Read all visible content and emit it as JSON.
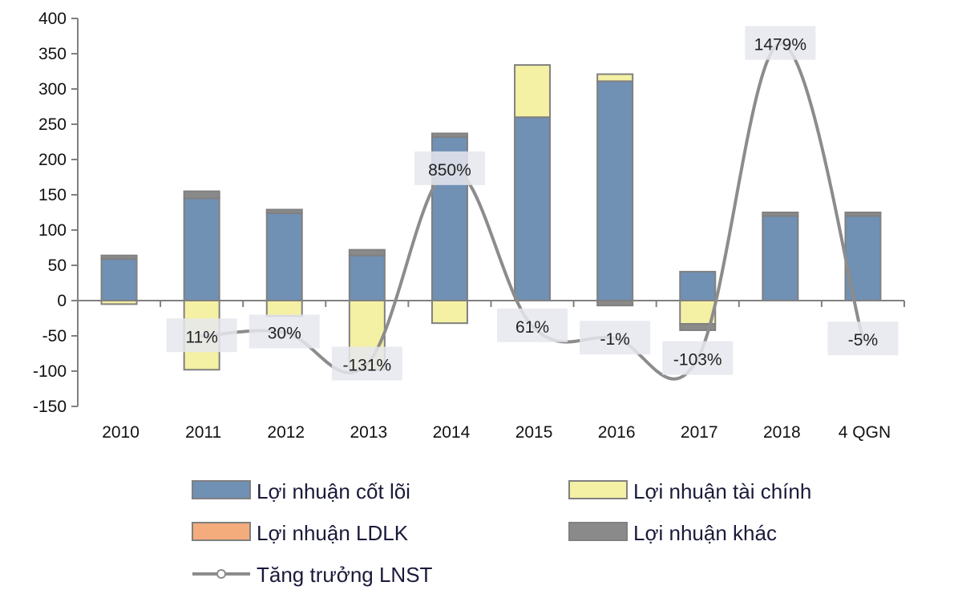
{
  "chart_data": {
    "type": "bar",
    "stacked": true,
    "title": "",
    "xlabel": "",
    "ylabel": "",
    "ylim": [
      -150,
      400
    ],
    "yticks": [
      400,
      350,
      300,
      250,
      200,
      150,
      100,
      50,
      0,
      -50,
      -100,
      -150
    ],
    "grid": false,
    "legend_position": "bottom",
    "categories": [
      "2010",
      "2011",
      "2012",
      "2013",
      "2014",
      "2015",
      "2016",
      "2017",
      "2018",
      "4 QGN"
    ],
    "series": [
      {
        "name": "Lợi nhuận cốt lõi",
        "color": "#7090b4",
        "values": [
          59,
          145,
          124,
          64,
          232,
          260,
          311,
          41,
          120,
          120
        ]
      },
      {
        "name": "Lợi nhuận tài chính",
        "color": "#f4f0a4",
        "values": [
          -5,
          -98,
          -22,
          -98,
          -32,
          74,
          10,
          -33,
          0,
          0
        ]
      },
      {
        "name": "Lợi nhuận LDLK",
        "color": "#f4ac7c",
        "values": [
          0,
          0,
          0,
          0,
          0,
          0,
          0,
          0,
          0,
          0
        ]
      },
      {
        "name": "Lợi nhuận khác",
        "color": "#8a8a8a",
        "values": [
          5,
          10,
          5,
          8,
          5,
          0,
          -7,
          -9,
          5,
          5
        ]
      }
    ],
    "line_series": {
      "name": "Tăng trưởng LNST",
      "color": "#8c8c8c",
      "axis": "secondary",
      "values": [
        null,
        11,
        30,
        -131,
        850,
        61,
        -1,
        -103,
        1479,
        -5
      ],
      "labels": [
        "",
        "11%",
        "30%",
        "-131%",
        "850%",
        "61%",
        "-1%",
        "-103%",
        "1479%",
        "-5%"
      ]
    }
  }
}
